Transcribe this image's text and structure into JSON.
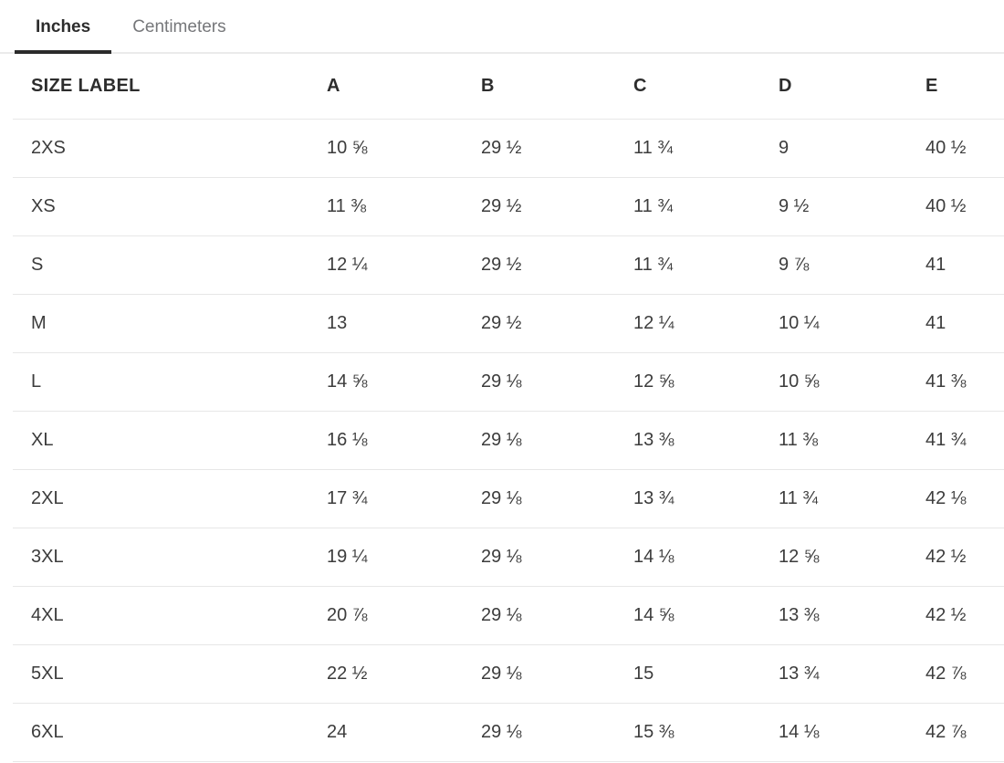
{
  "tabs": {
    "items": [
      {
        "label": "Inches",
        "active": true
      },
      {
        "label": "Centimeters",
        "active": false
      }
    ]
  },
  "table": {
    "headers": [
      "SIZE LABEL",
      "A",
      "B",
      "C",
      "D",
      "E"
    ],
    "rows": [
      {
        "label": "2XS",
        "values": [
          "10 ⅝",
          "29 ½",
          "11 ¾",
          "9",
          "40 ½"
        ]
      },
      {
        "label": "XS",
        "values": [
          "11 ⅜",
          "29 ½",
          "11 ¾",
          "9 ½",
          "40 ½"
        ]
      },
      {
        "label": "S",
        "values": [
          "12 ¼",
          "29 ½",
          "11 ¾",
          "9 ⅞",
          "41"
        ]
      },
      {
        "label": "M",
        "values": [
          "13",
          "29 ½",
          "12 ¼",
          "10 ¼",
          "41"
        ]
      },
      {
        "label": "L",
        "values": [
          "14 ⅝",
          "29 ⅛",
          "12 ⅝",
          "10 ⅝",
          "41 ⅜"
        ]
      },
      {
        "label": "XL",
        "values": [
          "16 ⅛",
          "29 ⅛",
          "13 ⅜",
          "11 ⅜",
          "41 ¾"
        ]
      },
      {
        "label": "2XL",
        "values": [
          "17 ¾",
          "29 ⅛",
          "13 ¾",
          "11 ¾",
          "42 ⅛"
        ]
      },
      {
        "label": "3XL",
        "values": [
          "19 ¼",
          "29 ⅛",
          "14 ⅛",
          "12 ⅝",
          "42 ½"
        ]
      },
      {
        "label": "4XL",
        "values": [
          "20 ⅞",
          "29 ⅛",
          "14 ⅝",
          "13 ⅜",
          "42 ½"
        ]
      },
      {
        "label": "5XL",
        "values": [
          "22 ½",
          "29 ⅛",
          "15",
          "13 ¾",
          "42 ⅞"
        ]
      },
      {
        "label": "6XL",
        "values": [
          "24",
          "29 ⅛",
          "15 ⅜",
          "14 ⅛",
          "42 ⅞"
        ]
      }
    ]
  },
  "colors": {
    "active_tab_text": "#2d2d2d",
    "inactive_tab_text": "#76777a",
    "active_tab_underline": "#2b2b2b",
    "row_border": "#e7e7e7",
    "cell_text": "#3c3c3c"
  }
}
